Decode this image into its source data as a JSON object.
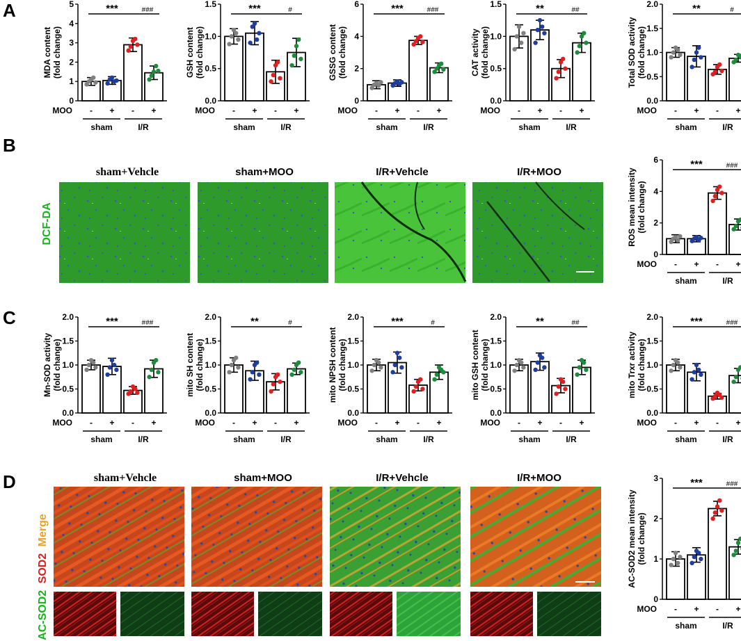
{
  "panels": {
    "A": "A",
    "B": "B",
    "C": "C",
    "D": "D"
  },
  "colors": {
    "sham": "#808080",
    "sham_moo": "#1f3d9e",
    "ir": "#e02020",
    "ir_moo": "#1e8a3c",
    "dcf_label": "#19b51d",
    "ac_label": "#19b51d",
    "sod2_label": "#e02020",
    "merge_label": "#f0a020",
    "green_tissue": "#2fa52a",
    "red_tissue": "#d83a1e"
  },
  "group_labels": {
    "moo": "MOO",
    "minus": "-",
    "plus": "+",
    "sham": "sham",
    "ir": "I/R"
  },
  "image_titles": [
    "sham+Vehcle",
    "sham+MOO",
    "I/R+Vehcle",
    "I/R+MOO"
  ],
  "stain_labels": {
    "dcf": "DCF-DA",
    "ac_sod2": "AC-SOD2",
    "sod2": "SOD2",
    "merge": "Merge"
  },
  "chart_data": [
    {
      "id": "mda",
      "type": "bar",
      "panel": "A",
      "ylabel": [
        "MDA content",
        "(fold change)"
      ],
      "ylim": [
        0,
        5
      ],
      "yticks": [
        "0",
        "1",
        "2",
        "3",
        "4",
        "5"
      ],
      "tickvals": [
        0,
        1,
        2,
        3,
        4,
        5
      ],
      "categories": [
        "sham -",
        "sham +",
        "I/R -",
        "I/R +"
      ],
      "values": [
        1.0,
        1.05,
        2.9,
        1.45
      ],
      "errors": [
        0.2,
        0.2,
        0.35,
        0.35
      ],
      "points": [
        [
          0.85,
          1.0,
          1.1,
          1.2,
          0.95
        ],
        [
          0.9,
          1.1,
          1.2,
          1.0,
          1.05
        ],
        [
          2.6,
          2.8,
          3.1,
          3.2,
          2.9
        ],
        [
          1.1,
          1.3,
          1.5,
          1.8,
          1.55
        ]
      ],
      "sig": "***",
      "sig2": "###"
    },
    {
      "id": "gsh",
      "type": "bar",
      "panel": "A",
      "ylabel": [
        "GSH content",
        "(fold change)"
      ],
      "ylim": [
        0,
        1.5
      ],
      "yticks": [
        "0.0",
        "0.5",
        "1.0",
        "1.5"
      ],
      "tickvals": [
        0,
        0.5,
        1.0,
        1.5
      ],
      "categories": [
        "sham -",
        "sham +",
        "I/R -",
        "I/R +"
      ],
      "values": [
        1.0,
        1.05,
        0.45,
        0.75
      ],
      "errors": [
        0.12,
        0.18,
        0.18,
        0.22
      ],
      "points": [
        [
          0.88,
          1.0,
          1.1,
          1.05,
          0.95
        ],
        [
          0.9,
          1.15,
          1.2,
          0.95,
          1.05
        ],
        [
          0.3,
          0.4,
          0.55,
          0.6,
          0.35
        ],
        [
          0.55,
          0.7,
          0.85,
          0.95,
          0.65
        ]
      ],
      "sig": "***",
      "sig2": "#"
    },
    {
      "id": "gssg",
      "type": "bar",
      "panel": "A",
      "ylabel": [
        "GSSG content",
        "(fold change)"
      ],
      "ylim": [
        0,
        6
      ],
      "yticks": [
        "0",
        "2",
        "4",
        "6"
      ],
      "tickvals": [
        0,
        2,
        4,
        6
      ],
      "categories": [
        "sham -",
        "sham +",
        "I/R -",
        "I/R +"
      ],
      "values": [
        1.0,
        1.1,
        3.75,
        2.05
      ],
      "errors": [
        0.25,
        0.2,
        0.25,
        0.3
      ],
      "points": [
        [
          0.8,
          1.0,
          1.1,
          0.95,
          1.15
        ],
        [
          0.95,
          1.1,
          1.2,
          1.05,
          1.15
        ],
        [
          3.5,
          3.7,
          3.9,
          4.0,
          3.65
        ],
        [
          1.8,
          2.0,
          2.2,
          2.3,
          1.95
        ]
      ],
      "sig": "***",
      "sig2": "###"
    },
    {
      "id": "cat",
      "type": "bar",
      "panel": "A",
      "ylabel": [
        "CAT activity",
        "(fold change)"
      ],
      "ylim": [
        0,
        1.5
      ],
      "yticks": [
        "0.0",
        "0.5",
        "1.0",
        "1.5"
      ],
      "tickvals": [
        0,
        0.5,
        1.0,
        1.5
      ],
      "categories": [
        "sham -",
        "sham +",
        "I/R -",
        "I/R +"
      ],
      "values": [
        1.0,
        1.1,
        0.5,
        0.9
      ],
      "errors": [
        0.18,
        0.15,
        0.14,
        0.15
      ],
      "points": [
        [
          0.8,
          1.0,
          1.15,
          0.9,
          1.05
        ],
        [
          0.9,
          1.1,
          1.25,
          1.15,
          1.05
        ],
        [
          0.35,
          0.45,
          0.6,
          0.65,
          0.5
        ],
        [
          0.75,
          0.85,
          1.0,
          1.05,
          0.9
        ]
      ],
      "sig": "**",
      "sig2": "##"
    },
    {
      "id": "tsod",
      "type": "bar",
      "panel": "A",
      "ylabel": [
        "Total SOD activity",
        "(fold change)"
      ],
      "ylim": [
        0,
        2.0
      ],
      "yticks": [
        "0.0",
        "0.5",
        "1.0",
        "1.5",
        "2.0"
      ],
      "tickvals": [
        0,
        0.5,
        1.0,
        1.5,
        2.0
      ],
      "categories": [
        "sham -",
        "sham +",
        "I/R -",
        "I/R +"
      ],
      "values": [
        1.0,
        0.92,
        0.65,
        0.88
      ],
      "errors": [
        0.1,
        0.22,
        0.1,
        0.08
      ],
      "points": [
        [
          0.9,
          1.0,
          1.1,
          1.05,
          0.95
        ],
        [
          0.7,
          0.85,
          1.0,
          1.1,
          0.9
        ],
        [
          0.55,
          0.6,
          0.7,
          0.75,
          0.62
        ],
        [
          0.8,
          0.85,
          0.95,
          0.92,
          0.88
        ]
      ],
      "sig": "**",
      "sig2": "#"
    },
    {
      "id": "ros",
      "type": "bar",
      "panel": "B",
      "ylabel": [
        "ROS mean intensity",
        "(fold change)"
      ],
      "ylim": [
        0,
        6
      ],
      "yticks": [
        "0",
        "2",
        "4",
        "6"
      ],
      "tickvals": [
        0,
        2,
        4,
        6
      ],
      "categories": [
        "sham -",
        "sham +",
        "I/R -",
        "I/R +"
      ],
      "values": [
        1.0,
        1.0,
        3.9,
        1.9
      ],
      "errors": [
        0.25,
        0.2,
        0.4,
        0.35
      ],
      "points": [
        [
          0.8,
          1.0,
          1.1,
          0.9,
          1.15
        ],
        [
          0.85,
          1.0,
          1.1,
          0.9,
          1.05
        ],
        [
          3.4,
          3.7,
          4.1,
          4.3,
          3.9
        ],
        [
          1.6,
          1.8,
          2.1,
          2.2,
          1.7
        ]
      ],
      "sig": "***",
      "sig2": "###"
    },
    {
      "id": "mnsod",
      "type": "bar",
      "panel": "C",
      "ylabel": [
        "Mn-SOD activity",
        "(fold change)"
      ],
      "ylim": [
        0,
        2.0
      ],
      "yticks": [
        "0.0",
        "0.5",
        "1.0",
        "1.5",
        "2.0"
      ],
      "tickvals": [
        0,
        0.5,
        1.0,
        1.5,
        2.0
      ],
      "categories": [
        "sham -",
        "sham +",
        "I/R -",
        "I/R +"
      ],
      "values": [
        1.0,
        0.97,
        0.47,
        0.92
      ],
      "errors": [
        0.1,
        0.17,
        0.08,
        0.18
      ],
      "points": [
        [
          0.9,
          1.0,
          1.1,
          1.05,
          0.95
        ],
        [
          0.8,
          0.95,
          1.1,
          1.0,
          0.9
        ],
        [
          0.4,
          0.45,
          0.55,
          0.5,
          0.42
        ],
        [
          0.75,
          0.9,
          1.05,
          1.1,
          0.85
        ]
      ],
      "sig": "***",
      "sig2": "###"
    },
    {
      "id": "msh",
      "type": "bar",
      "panel": "C",
      "ylabel": [
        "mito SH content",
        "(fold change)"
      ],
      "ylim": [
        0,
        2.0
      ],
      "yticks": [
        "0.0",
        "0.5",
        "1.0",
        "1.5",
        "2.0"
      ],
      "tickvals": [
        0,
        0.5,
        1.0,
        1.5,
        2.0
      ],
      "categories": [
        "sham -",
        "sham +",
        "I/R -",
        "I/R +"
      ],
      "values": [
        1.0,
        0.88,
        0.65,
        0.92
      ],
      "errors": [
        0.15,
        0.2,
        0.17,
        0.12
      ],
      "points": [
        [
          0.85,
          1.0,
          1.1,
          1.15,
          0.95
        ],
        [
          0.7,
          0.85,
          1.0,
          1.05,
          0.8
        ],
        [
          0.45,
          0.6,
          0.75,
          0.8,
          0.65
        ],
        [
          0.8,
          0.9,
          1.0,
          1.05,
          0.85
        ]
      ],
      "sig": "**",
      "sig2": "#"
    },
    {
      "id": "mnpsh",
      "type": "bar",
      "panel": "C",
      "ylabel": [
        "mito NPSH content",
        "(fold change)"
      ],
      "ylim": [
        0,
        2.0
      ],
      "yticks": [
        "0.0",
        "0.5",
        "1.0",
        "1.5",
        "2.0"
      ],
      "tickvals": [
        0,
        0.5,
        1.0,
        1.5,
        2.0
      ],
      "categories": [
        "sham -",
        "sham +",
        "I/R -",
        "I/R +"
      ],
      "values": [
        1.0,
        1.05,
        0.58,
        0.85
      ],
      "errors": [
        0.12,
        0.22,
        0.12,
        0.15
      ],
      "points": [
        [
          0.88,
          1.0,
          1.1,
          1.05,
          0.95
        ],
        [
          0.85,
          1.0,
          1.25,
          1.15,
          0.95
        ],
        [
          0.45,
          0.55,
          0.65,
          0.7,
          0.5
        ],
        [
          0.7,
          0.8,
          0.95,
          0.9,
          0.85
        ]
      ],
      "sig": "***",
      "sig2": "#"
    },
    {
      "id": "mgsh",
      "type": "bar",
      "panel": "C",
      "ylabel": [
        "mito GSH content",
        "(fold change)"
      ],
      "ylim": [
        0,
        2.0
      ],
      "yticks": [
        "0.0",
        "0.5",
        "1.0",
        "1.5",
        "2.0"
      ],
      "tickvals": [
        0,
        0.5,
        1.0,
        1.5,
        2.0
      ],
      "categories": [
        "sham -",
        "sham +",
        "I/R -",
        "I/R +"
      ],
      "values": [
        1.0,
        1.07,
        0.57,
        0.95
      ],
      "errors": [
        0.12,
        0.18,
        0.15,
        0.15
      ],
      "points": [
        [
          0.88,
          1.0,
          1.1,
          1.05,
          0.95
        ],
        [
          0.9,
          1.05,
          1.2,
          1.15,
          0.95
        ],
        [
          0.4,
          0.55,
          0.7,
          0.65,
          0.5
        ],
        [
          0.8,
          0.95,
          1.1,
          1.05,
          0.9
        ]
      ],
      "sig": "**",
      "sig2": "##"
    },
    {
      "id": "trx",
      "type": "bar",
      "panel": "C",
      "ylabel": [
        "mito Trxr activity",
        "(fold change)"
      ],
      "ylim": [
        0,
        2.0
      ],
      "yticks": [
        "0.0",
        "0.5",
        "1.0",
        "1.5",
        "2.0"
      ],
      "tickvals": [
        0,
        0.5,
        1.0,
        1.5,
        2.0
      ],
      "categories": [
        "sham -",
        "sham +",
        "I/R -",
        "I/R +"
      ],
      "values": [
        1.0,
        0.85,
        0.35,
        0.78
      ],
      "errors": [
        0.12,
        0.18,
        0.06,
        0.15
      ],
      "points": [
        [
          0.88,
          1.0,
          1.1,
          1.05,
          0.95
        ],
        [
          0.7,
          0.85,
          1.0,
          0.9,
          0.8
        ],
        [
          0.3,
          0.35,
          0.42,
          0.38,
          0.32
        ],
        [
          0.65,
          0.75,
          0.9,
          0.95,
          0.72
        ]
      ],
      "sig": "***",
      "sig2": "###"
    },
    {
      "id": "acsod2",
      "type": "bar",
      "panel": "D",
      "ylabel": [
        "AC-SOD2 mean intensity",
        "(fold change)"
      ],
      "ylim": [
        0,
        3
      ],
      "yticks": [
        "0",
        "1",
        "2",
        "3"
      ],
      "tickvals": [
        0,
        1,
        2,
        3
      ],
      "categories": [
        "sham -",
        "sham +",
        "I/R -",
        "I/R +"
      ],
      "values": [
        1.0,
        1.1,
        2.25,
        1.3
      ],
      "errors": [
        0.18,
        0.18,
        0.18,
        0.18
      ],
      "points": [
        [
          0.85,
          1.0,
          1.15,
          0.9,
          1.05
        ],
        [
          0.9,
          1.05,
          1.2,
          1.15,
          1.0
        ],
        [
          2.0,
          2.15,
          2.3,
          2.45,
          2.2
        ],
        [
          1.1,
          1.2,
          1.4,
          1.5,
          1.25
        ]
      ],
      "sig": "***",
      "sig2": "###"
    }
  ]
}
